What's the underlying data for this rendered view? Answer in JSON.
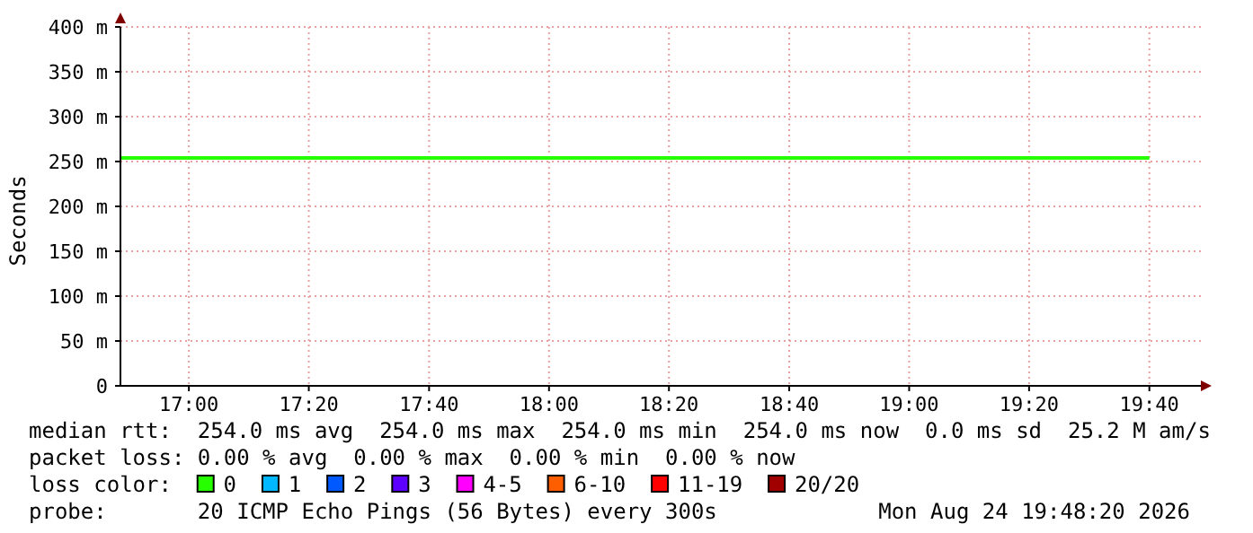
{
  "chart_data": {
    "type": "line",
    "ylabel": "Seconds",
    "legend_title": "loss color:",
    "legend": "bottom",
    "grid": true,
    "marker": "none",
    "line_style": "solid",
    "x": [
      16.81,
      19.667
    ],
    "xlim": [
      16.81,
      19.81
    ],
    "xticks": [
      {
        "value": 17,
        "label": "17:00"
      },
      {
        "value": 17.333,
        "label": "17:20"
      },
      {
        "value": 17.667,
        "label": "17:40"
      },
      {
        "value": 18,
        "label": "18:00"
      },
      {
        "value": 18.333,
        "label": "18:20"
      },
      {
        "value": 18.667,
        "label": "18:40"
      },
      {
        "value": 19,
        "label": "19:00"
      },
      {
        "value": 19.333,
        "label": "19:20"
      },
      {
        "value": 19.667,
        "label": "19:40"
      }
    ],
    "ylim": [
      0,
      400
    ],
    "yticks": [
      0,
      {
        "value": 50,
        "label": "50 m"
      },
      {
        "value": 100,
        "label": "100 m"
      },
      {
        "value": 150,
        "label": "150 m"
      },
      {
        "value": 200,
        "label": "200 m"
      },
      {
        "value": 250,
        "label": "250 m"
      },
      {
        "value": 300,
        "label": "300 m"
      },
      {
        "value": 350,
        "label": "350 m"
      },
      {
        "value": 400,
        "label": "400 m"
      }
    ],
    "series": [
      {
        "name": "0",
        "color": "#26ff00",
        "values": [
          254,
          254
        ]
      },
      {
        "name": "1",
        "color": "#00b8ff",
        "values": [
          null,
          null
        ]
      },
      {
        "name": "2",
        "color": "#0059ff",
        "values": [
          null,
          null
        ]
      },
      {
        "name": "3",
        "color": "#5e00ff",
        "values": [
          null,
          null
        ]
      },
      {
        "name": "4-5",
        "color": "#ff00ff",
        "values": [
          null,
          null
        ]
      },
      {
        "name": "6-10",
        "color": "#ff5e00",
        "values": [
          null,
          null
        ]
      },
      {
        "name": "11-19",
        "color": "#ff0000",
        "values": [
          null,
          null
        ]
      },
      {
        "name": "20/20",
        "color": "#a10000",
        "values": [
          null,
          null
        ]
      }
    ],
    "annotations": [
      "median rtt:  254.0 ms avg  254.0 ms max  254.0 ms min  254.0 ms now  0.0 ms sd  25.2 M am/s",
      "packet loss: 0.00 % avg  0.00 % max  0.00 % min  0.00 % now",
      "probe:       20 ICMP Echo Pings (56 Bytes) every 300s",
      "Mon Aug 24 19:48:20 2026"
    ]
  }
}
